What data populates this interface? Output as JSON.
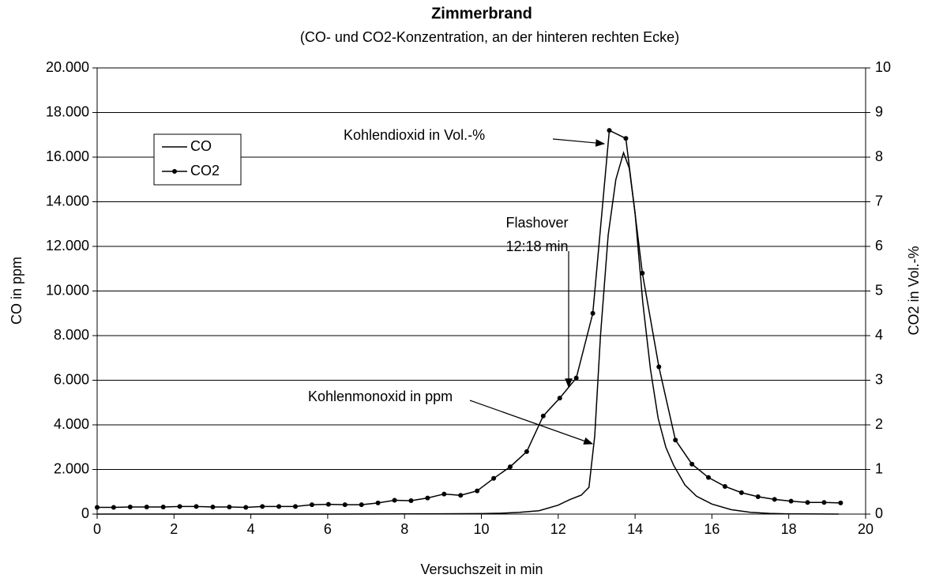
{
  "chart_data": {
    "type": "line",
    "title": "Zimmerbrand",
    "subtitle": "(CO- und CO2-Konzentration, an der hinteren rechten Ecke)",
    "x_label": "Versuchszeit in min",
    "y_label": "CO in ppm",
    "y2_label": "CO2 in Vol.-%",
    "xlim": [
      0,
      20
    ],
    "xticks": [
      0,
      2,
      4,
      6,
      8,
      10,
      12,
      14,
      16,
      18,
      20
    ],
    "ylim": [
      0,
      20000
    ],
    "yticks": [
      {
        "value": 0,
        "label": "0"
      },
      {
        "value": 2000,
        "label": "2.000"
      },
      {
        "value": 4000,
        "label": "4.000"
      },
      {
        "value": 6000,
        "label": "6.000"
      },
      {
        "value": 8000,
        "label": "8.000"
      },
      {
        "value": 10000,
        "label": "10.000"
      },
      {
        "value": 12000,
        "label": "12.000"
      },
      {
        "value": 14000,
        "label": "14.000"
      },
      {
        "value": 16000,
        "label": "16.000"
      },
      {
        "value": 18000,
        "label": "18.000"
      },
      {
        "value": 20000,
        "label": "20.000"
      }
    ],
    "y2lim": [
      0,
      10
    ],
    "y2ticks": [
      0,
      1,
      2,
      3,
      4,
      5,
      6,
      7,
      8,
      9,
      10
    ],
    "grid": true,
    "legend": "upper left",
    "annotations": [
      "Kohlendioxid in Vol.-%",
      "Flashover",
      "12:18 min",
      "Kohlenmonoxid in ppm"
    ],
    "series": [
      {
        "name": "CO",
        "color": "#000000",
        "marker": false,
        "x": [
          0,
          2,
          4,
          6,
          8,
          9,
          10,
          10.5,
          11,
          11.5,
          12,
          12.3,
          12.6,
          12.8,
          12.95,
          13.1,
          13.3,
          13.5,
          13.7,
          13.85,
          14.0,
          14.2,
          14.4,
          14.6,
          14.8,
          15.0,
          15.3,
          15.6,
          16.0,
          16.5,
          17.0,
          17.5,
          18.0,
          19.3
        ],
        "values": [
          0,
          0,
          0,
          0,
          10,
          15,
          20,
          40,
          80,
          150,
          400,
          650,
          850,
          1200,
          3500,
          8000,
          12500,
          15000,
          16200,
          15500,
          13500,
          9500,
          6500,
          4300,
          3000,
          2200,
          1300,
          800,
          450,
          200,
          80,
          30,
          10,
          0
        ]
      },
      {
        "name": "CO2",
        "color": "#000000",
        "marker": true,
        "axis": "y2",
        "x": [
          0,
          0.43,
          0.86,
          1.29,
          1.72,
          2.15,
          2.58,
          3.01,
          3.44,
          3.87,
          4.3,
          4.73,
          5.16,
          5.59,
          6.02,
          6.45,
          6.88,
          7.31,
          7.74,
          8.17,
          8.6,
          9.03,
          9.46,
          9.89,
          10.32,
          10.75,
          11.18,
          11.61,
          12.04,
          12.47,
          12.9,
          13.33,
          13.76,
          14.19,
          14.62,
          15.05,
          15.48,
          15.91,
          16.34,
          16.77,
          17.2,
          17.63,
          18.06,
          18.49,
          18.92,
          19.35
        ],
        "values": [
          0.15,
          0.15,
          0.16,
          0.16,
          0.16,
          0.17,
          0.17,
          0.16,
          0.16,
          0.15,
          0.17,
          0.17,
          0.17,
          0.21,
          0.22,
          0.21,
          0.21,
          0.25,
          0.31,
          0.3,
          0.36,
          0.45,
          0.42,
          0.52,
          0.8,
          1.06,
          1.4,
          2.2,
          2.6,
          3.05,
          4.5,
          8.6,
          8.42,
          5.4,
          3.3,
          1.66,
          1.12,
          0.82,
          0.62,
          0.48,
          0.39,
          0.33,
          0.29,
          0.26,
          0.26,
          0.25
        ]
      }
    ]
  }
}
